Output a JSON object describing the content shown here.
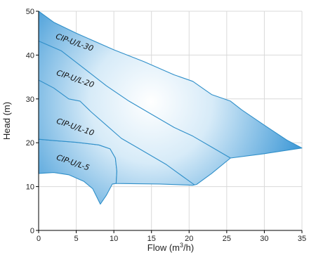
{
  "chart_data": {
    "type": "area",
    "xlabel": "Flow (m",
    "xlabel_sup": "3",
    "xlabel_suffix": "/h)",
    "ylabel": "Head (m)",
    "xlim": [
      0,
      35
    ],
    "ylim": [
      0,
      50
    ],
    "x_ticks": [
      0,
      5,
      10,
      15,
      20,
      25,
      30,
      35
    ],
    "y_ticks": [
      0,
      10,
      20,
      30,
      40,
      50
    ],
    "grid": true,
    "colors": {
      "fill_edge": "#2f8fc9",
      "fill_deep": "#1f88d0",
      "fill_light": "#ffffff"
    },
    "regions": [
      {
        "name": "region-small",
        "points": [
          [
            0,
            13
          ],
          [
            2,
            13.2
          ],
          [
            4,
            12.7
          ],
          [
            6,
            11.2
          ],
          [
            7.2,
            9.5
          ],
          [
            8.2,
            6
          ],
          [
            9,
            8
          ],
          [
            9.8,
            10.6
          ],
          [
            10.3,
            10.7
          ],
          [
            10.4,
            13.5
          ],
          [
            10.2,
            16.5
          ],
          [
            9.5,
            18.6
          ],
          [
            8,
            19.5
          ],
          [
            5,
            20.1
          ],
          [
            2,
            20.5
          ],
          [
            0,
            20.8
          ]
        ]
      },
      {
        "name": "region-large",
        "points": [
          [
            0,
            20.8
          ],
          [
            2,
            20.5
          ],
          [
            5,
            20.1
          ],
          [
            8,
            19.5
          ],
          [
            9.5,
            18.6
          ],
          [
            10.2,
            16.5
          ],
          [
            10.4,
            13.5
          ],
          [
            10.3,
            10.7
          ],
          [
            16,
            10.6
          ],
          [
            20.5,
            10.3
          ],
          [
            21,
            10.5
          ],
          [
            23,
            13
          ],
          [
            25.5,
            16.5
          ],
          [
            30,
            17.5
          ],
          [
            35,
            18.8
          ],
          [
            33,
            20.6
          ],
          [
            30,
            24
          ],
          [
            27,
            27.5
          ],
          [
            25.5,
            29.5
          ],
          [
            23,
            31
          ],
          [
            20.5,
            34
          ],
          [
            18,
            35.5
          ],
          [
            14,
            38.5
          ],
          [
            10,
            41.2
          ],
          [
            5,
            45
          ],
          [
            2,
            47.5
          ],
          [
            0,
            50
          ]
        ]
      }
    ],
    "curves": [
      {
        "name": "curve-cip-20",
        "points": [
          [
            0,
            43.2
          ],
          [
            3,
            41
          ],
          [
            6,
            37
          ],
          [
            9,
            33
          ],
          [
            12,
            29.5
          ],
          [
            15,
            26.5
          ],
          [
            18,
            23.5
          ],
          [
            20.5,
            21.5
          ],
          [
            23,
            19
          ],
          [
            25.5,
            16.5
          ]
        ]
      },
      {
        "name": "curve-cip-10",
        "points": [
          [
            0,
            34.3
          ],
          [
            2,
            32.5
          ],
          [
            4,
            30
          ],
          [
            5.5,
            29.5
          ],
          [
            7,
            27
          ],
          [
            9,
            24
          ],
          [
            11,
            21
          ],
          [
            13,
            19
          ],
          [
            15,
            17
          ],
          [
            17,
            15
          ],
          [
            19,
            12.5
          ],
          [
            20.7,
            10.4
          ]
        ]
      }
    ],
    "labels": [
      {
        "text": "CIP-U/L-30",
        "x": 2.2,
        "y": 43.8,
        "angle": 19
      },
      {
        "text": "CIP-U/L-20",
        "x": 2.3,
        "y": 35.5,
        "angle": 19
      },
      {
        "text": "CIP-U/L-10",
        "x": 2.3,
        "y": 24.5,
        "angle": 19
      },
      {
        "text": "CIP-U/L-5",
        "x": 2.3,
        "y": 16.2,
        "angle": 19
      }
    ]
  }
}
